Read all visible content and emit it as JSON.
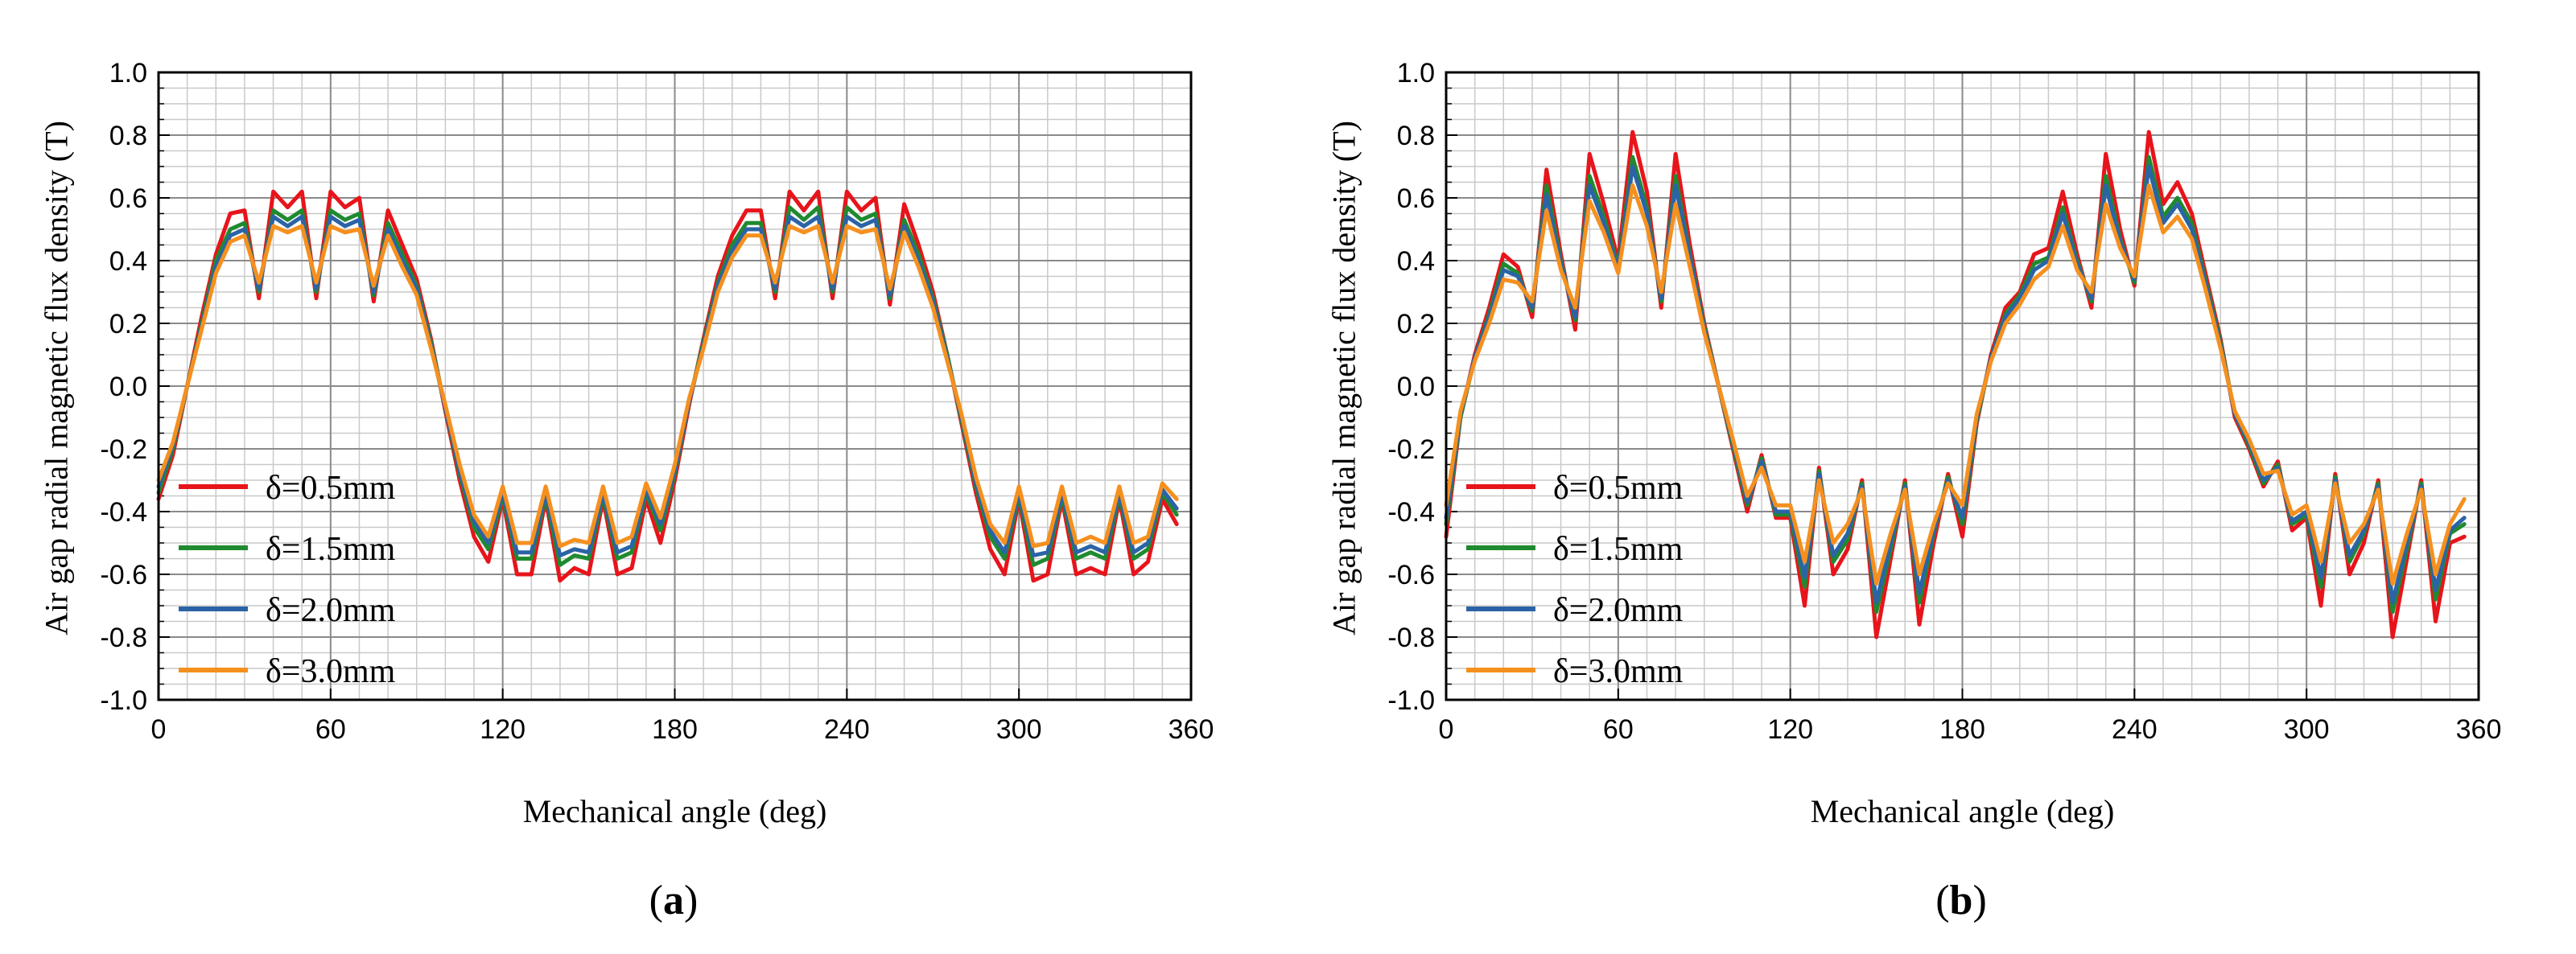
{
  "chart_data": [
    {
      "type": "line",
      "panel": "a",
      "caption_letter": "a",
      "xlabel": "Mechanical angle (deg)",
      "ylabel": "Air gap radial magnetic flux density (T)",
      "xlim": [
        0,
        360
      ],
      "ylim": [
        -1.0,
        1.0
      ],
      "xticks": [
        "0",
        "60",
        "120",
        "180",
        "240",
        "300",
        "360"
      ],
      "yticks": [
        "-1.0",
        "-0.8",
        "-0.6",
        "-0.4",
        "-0.2",
        "0.0",
        "0.2",
        "0.4",
        "0.6",
        "0.8",
        "1.0"
      ],
      "grid": true,
      "legend_position": "bottom-left",
      "x": [
        0,
        5,
        10,
        15,
        20,
        25,
        30,
        35,
        40,
        45,
        50,
        55,
        60,
        65,
        70,
        75,
        80,
        85,
        90,
        95,
        100,
        105,
        110,
        115,
        120,
        125,
        130,
        135,
        140,
        145,
        150,
        155,
        160,
        165,
        170,
        175,
        180,
        185,
        190,
        195,
        200,
        205,
        210,
        215,
        220,
        225,
        230,
        235,
        240,
        245,
        250,
        255,
        260,
        265,
        270,
        275,
        280,
        285,
        290,
        295,
        300,
        305,
        310,
        315,
        320,
        325,
        330,
        335,
        340,
        345,
        350,
        355
      ],
      "series": [
        {
          "name": "δ=0.5mm",
          "color": "#e8141b",
          "values": [
            -0.36,
            -0.22,
            0.0,
            0.22,
            0.42,
            0.55,
            0.56,
            0.28,
            0.62,
            0.57,
            0.62,
            0.28,
            0.62,
            0.57,
            0.6,
            0.27,
            0.56,
            0.45,
            0.34,
            0.15,
            -0.08,
            -0.3,
            -0.48,
            -0.56,
            -0.36,
            -0.6,
            -0.6,
            -0.36,
            -0.62,
            -0.58,
            -0.6,
            -0.36,
            -0.6,
            -0.58,
            -0.36,
            -0.5,
            -0.3,
            -0.06,
            0.15,
            0.35,
            0.48,
            0.56,
            0.56,
            0.28,
            0.62,
            0.56,
            0.62,
            0.28,
            0.62,
            0.56,
            0.6,
            0.26,
            0.58,
            0.45,
            0.3,
            0.1,
            -0.12,
            -0.34,
            -0.52,
            -0.6,
            -0.36,
            -0.62,
            -0.6,
            -0.36,
            -0.6,
            -0.58,
            -0.6,
            -0.36,
            -0.6,
            -0.56,
            -0.36,
            -0.44
          ]
        },
        {
          "name": "δ=1.5mm",
          "color": "#1f8a2f",
          "values": [
            -0.34,
            -0.2,
            0.0,
            0.2,
            0.4,
            0.5,
            0.52,
            0.3,
            0.56,
            0.53,
            0.56,
            0.3,
            0.56,
            0.53,
            0.55,
            0.29,
            0.52,
            0.42,
            0.32,
            0.14,
            -0.07,
            -0.28,
            -0.45,
            -0.52,
            -0.35,
            -0.55,
            -0.55,
            -0.35,
            -0.57,
            -0.54,
            -0.55,
            -0.35,
            -0.55,
            -0.53,
            -0.34,
            -0.46,
            -0.28,
            -0.05,
            0.14,
            0.33,
            0.45,
            0.52,
            0.52,
            0.3,
            0.57,
            0.53,
            0.57,
            0.3,
            0.57,
            0.53,
            0.55,
            0.28,
            0.53,
            0.42,
            0.28,
            0.1,
            -0.11,
            -0.32,
            -0.48,
            -0.55,
            -0.35,
            -0.57,
            -0.55,
            -0.35,
            -0.55,
            -0.53,
            -0.55,
            -0.35,
            -0.55,
            -0.52,
            -0.34,
            -0.41
          ]
        },
        {
          "name": "δ=2.0mm",
          "color": "#2b63a6",
          "values": [
            -0.32,
            -0.19,
            0.0,
            0.19,
            0.38,
            0.48,
            0.5,
            0.31,
            0.54,
            0.51,
            0.54,
            0.31,
            0.54,
            0.51,
            0.53,
            0.3,
            0.5,
            0.4,
            0.31,
            0.13,
            -0.07,
            -0.27,
            -0.43,
            -0.5,
            -0.34,
            -0.53,
            -0.53,
            -0.34,
            -0.54,
            -0.52,
            -0.53,
            -0.34,
            -0.53,
            -0.51,
            -0.33,
            -0.44,
            -0.27,
            -0.05,
            0.13,
            0.32,
            0.43,
            0.5,
            0.5,
            0.31,
            0.54,
            0.51,
            0.54,
            0.31,
            0.54,
            0.51,
            0.53,
            0.29,
            0.51,
            0.4,
            0.27,
            0.09,
            -0.1,
            -0.31,
            -0.46,
            -0.53,
            -0.34,
            -0.54,
            -0.53,
            -0.34,
            -0.53,
            -0.51,
            -0.53,
            -0.34,
            -0.53,
            -0.5,
            -0.33,
            -0.39
          ]
        },
        {
          "name": "δ=3.0mm",
          "color": "#f5901e",
          "values": [
            -0.3,
            -0.18,
            0.0,
            0.18,
            0.36,
            0.46,
            0.48,
            0.33,
            0.51,
            0.49,
            0.51,
            0.33,
            0.51,
            0.49,
            0.5,
            0.32,
            0.48,
            0.38,
            0.29,
            0.12,
            -0.06,
            -0.25,
            -0.41,
            -0.48,
            -0.32,
            -0.5,
            -0.5,
            -0.32,
            -0.51,
            -0.49,
            -0.5,
            -0.32,
            -0.5,
            -0.48,
            -0.31,
            -0.42,
            -0.25,
            -0.04,
            0.12,
            0.3,
            0.41,
            0.48,
            0.48,
            0.33,
            0.51,
            0.49,
            0.51,
            0.33,
            0.51,
            0.49,
            0.5,
            0.31,
            0.49,
            0.38,
            0.25,
            0.08,
            -0.09,
            -0.29,
            -0.44,
            -0.5,
            -0.32,
            -0.51,
            -0.5,
            -0.32,
            -0.5,
            -0.48,
            -0.5,
            -0.32,
            -0.5,
            -0.48,
            -0.31,
            -0.36
          ]
        }
      ]
    },
    {
      "type": "line",
      "panel": "b",
      "caption_letter": "b",
      "xlabel": "Mechanical angle (deg)",
      "ylabel": "Air gap radial magnetic flux density (T)",
      "xlim": [
        0,
        360
      ],
      "ylim": [
        -1.0,
        1.0
      ],
      "xticks": [
        "0",
        "60",
        "120",
        "180",
        "240",
        "300",
        "360"
      ],
      "yticks": [
        "-1.0",
        "-0.8",
        "-0.6",
        "-0.4",
        "-0.2",
        "0.0",
        "0.2",
        "0.4",
        "0.6",
        "0.8",
        "1.0"
      ],
      "grid": true,
      "legend_position": "bottom-left",
      "x": [
        0,
        5,
        10,
        15,
        20,
        25,
        30,
        35,
        40,
        45,
        50,
        55,
        60,
        65,
        70,
        75,
        80,
        85,
        90,
        95,
        100,
        105,
        110,
        115,
        120,
        125,
        130,
        135,
        140,
        145,
        150,
        155,
        160,
        165,
        170,
        175,
        180,
        185,
        190,
        195,
        200,
        205,
        210,
        215,
        220,
        225,
        230,
        235,
        240,
        245,
        250,
        255,
        260,
        265,
        270,
        275,
        280,
        285,
        290,
        295,
        300,
        305,
        310,
        315,
        320,
        325,
        330,
        335,
        340,
        345,
        350,
        355
      ],
      "series": [
        {
          "name": "δ=0.5mm",
          "color": "#e8141b",
          "values": [
            -0.48,
            -0.1,
            0.1,
            0.25,
            0.42,
            0.38,
            0.22,
            0.69,
            0.42,
            0.18,
            0.74,
            0.58,
            0.4,
            0.81,
            0.62,
            0.25,
            0.74,
            0.45,
            0.2,
            0.0,
            -0.2,
            -0.4,
            -0.22,
            -0.42,
            -0.42,
            -0.7,
            -0.26,
            -0.6,
            -0.52,
            -0.3,
            -0.8,
            -0.55,
            -0.3,
            -0.76,
            -0.5,
            -0.28,
            -0.48,
            -0.12,
            0.1,
            0.25,
            0.3,
            0.42,
            0.44,
            0.62,
            0.42,
            0.25,
            0.74,
            0.5,
            0.32,
            0.81,
            0.58,
            0.65,
            0.55,
            0.35,
            0.15,
            -0.1,
            -0.2,
            -0.32,
            -0.24,
            -0.46,
            -0.42,
            -0.7,
            -0.28,
            -0.6,
            -0.5,
            -0.3,
            -0.8,
            -0.55,
            -0.3,
            -0.75,
            -0.5,
            -0.48
          ]
        },
        {
          "name": "δ=1.5mm",
          "color": "#1f8a2f",
          "values": [
            -0.44,
            -0.1,
            0.09,
            0.23,
            0.39,
            0.36,
            0.24,
            0.64,
            0.4,
            0.21,
            0.67,
            0.54,
            0.38,
            0.73,
            0.57,
            0.27,
            0.67,
            0.42,
            0.19,
            0.0,
            -0.19,
            -0.38,
            -0.23,
            -0.41,
            -0.41,
            -0.64,
            -0.27,
            -0.56,
            -0.49,
            -0.31,
            -0.72,
            -0.52,
            -0.31,
            -0.69,
            -0.47,
            -0.29,
            -0.44,
            -0.11,
            0.09,
            0.23,
            0.29,
            0.39,
            0.41,
            0.57,
            0.4,
            0.27,
            0.67,
            0.47,
            0.33,
            0.73,
            0.54,
            0.6,
            0.52,
            0.33,
            0.14,
            -0.09,
            -0.19,
            -0.31,
            -0.25,
            -0.44,
            -0.41,
            -0.64,
            -0.29,
            -0.56,
            -0.47,
            -0.31,
            -0.72,
            -0.52,
            -0.31,
            -0.68,
            -0.47,
            -0.44
          ]
        },
        {
          "name": "δ=2.0mm",
          "color": "#2b63a6",
          "values": [
            -0.42,
            -0.09,
            0.09,
            0.22,
            0.37,
            0.35,
            0.25,
            0.61,
            0.39,
            0.22,
            0.64,
            0.52,
            0.37,
            0.7,
            0.55,
            0.28,
            0.64,
            0.41,
            0.18,
            0.0,
            -0.18,
            -0.37,
            -0.24,
            -0.4,
            -0.4,
            -0.61,
            -0.28,
            -0.54,
            -0.47,
            -0.32,
            -0.69,
            -0.5,
            -0.32,
            -0.66,
            -0.46,
            -0.3,
            -0.42,
            -0.1,
            0.09,
            0.22,
            0.28,
            0.37,
            0.4,
            0.55,
            0.39,
            0.28,
            0.64,
            0.46,
            0.34,
            0.7,
            0.52,
            0.58,
            0.5,
            0.32,
            0.13,
            -0.09,
            -0.18,
            -0.3,
            -0.26,
            -0.43,
            -0.4,
            -0.61,
            -0.3,
            -0.54,
            -0.46,
            -0.32,
            -0.69,
            -0.5,
            -0.32,
            -0.65,
            -0.46,
            -0.42
          ]
        },
        {
          "name": "δ=3.0mm",
          "color": "#f5901e",
          "values": [
            -0.38,
            -0.08,
            0.08,
            0.2,
            0.34,
            0.33,
            0.27,
            0.56,
            0.37,
            0.25,
            0.59,
            0.49,
            0.36,
            0.64,
            0.51,
            0.3,
            0.58,
            0.38,
            0.17,
            0.0,
            -0.17,
            -0.35,
            -0.26,
            -0.38,
            -0.38,
            -0.56,
            -0.3,
            -0.5,
            -0.44,
            -0.33,
            -0.63,
            -0.47,
            -0.33,
            -0.6,
            -0.44,
            -0.31,
            -0.38,
            -0.09,
            0.08,
            0.2,
            0.26,
            0.34,
            0.38,
            0.51,
            0.37,
            0.3,
            0.58,
            0.44,
            0.35,
            0.64,
            0.49,
            0.54,
            0.47,
            0.3,
            0.12,
            -0.08,
            -0.17,
            -0.28,
            -0.27,
            -0.41,
            -0.38,
            -0.56,
            -0.31,
            -0.5,
            -0.44,
            -0.33,
            -0.63,
            -0.47,
            -0.33,
            -0.6,
            -0.44,
            -0.36
          ]
        }
      ]
    }
  ]
}
